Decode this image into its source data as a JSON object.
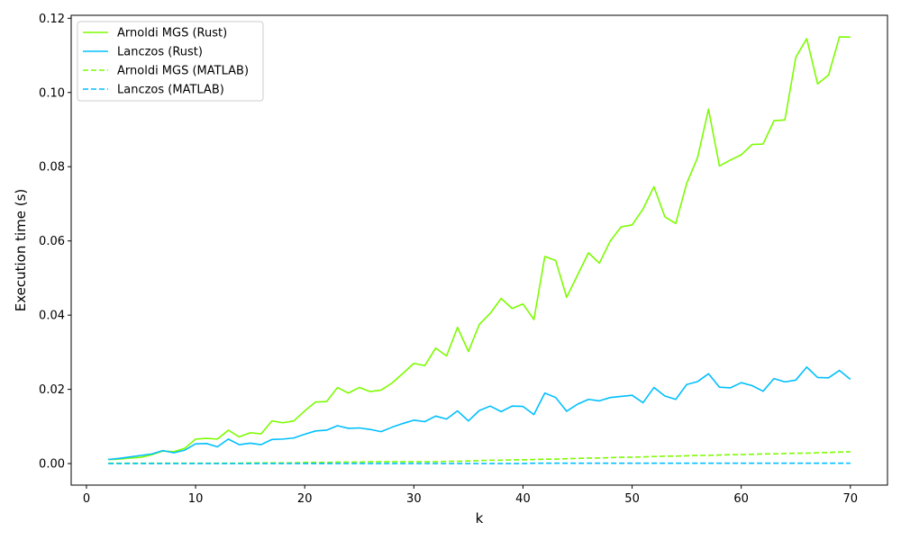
{
  "chart_data": {
    "type": "line",
    "xlabel": "k",
    "ylabel": "Execution time (s)",
    "xlim": [
      -1.4,
      73.4
    ],
    "ylim": [
      -0.0058,
      0.1208
    ],
    "xticks": [
      0,
      10,
      20,
      30,
      40,
      50,
      60,
      70
    ],
    "yticks": [
      0.0,
      0.02,
      0.04,
      0.06,
      0.08,
      0.1,
      0.12
    ],
    "ytick_labels": [
      "0.00",
      "0.02",
      "0.04",
      "0.06",
      "0.08",
      "0.10",
      "0.12"
    ],
    "grid": false,
    "legend_position": "upper-left",
    "x": [
      2,
      3,
      4,
      5,
      6,
      7,
      8,
      9,
      10,
      11,
      12,
      13,
      14,
      15,
      16,
      17,
      18,
      19,
      20,
      21,
      22,
      23,
      24,
      25,
      26,
      27,
      28,
      29,
      30,
      31,
      32,
      33,
      34,
      35,
      36,
      37,
      38,
      39,
      40,
      41,
      42,
      43,
      44,
      45,
      46,
      47,
      48,
      49,
      50,
      51,
      52,
      53,
      54,
      55,
      56,
      57,
      58,
      59,
      60,
      61,
      62,
      63,
      64,
      65,
      66,
      67,
      68,
      69,
      70
    ],
    "series": [
      {
        "name": "Arnoldi MGS (Rust)",
        "color": "#7cfc00",
        "style": "solid",
        "values": [
          0.0011,
          0.0012,
          0.0015,
          0.0017,
          0.0024,
          0.0034,
          0.0032,
          0.0041,
          0.0066,
          0.0068,
          0.0066,
          0.009,
          0.0072,
          0.0083,
          0.008,
          0.0115,
          0.011,
          0.0115,
          0.0142,
          0.0166,
          0.0167,
          0.0205,
          0.019,
          0.0205,
          0.0194,
          0.0198,
          0.0217,
          0.0243,
          0.027,
          0.0264,
          0.0311,
          0.029,
          0.0367,
          0.0302,
          0.0375,
          0.0405,
          0.0445,
          0.0418,
          0.043,
          0.0388,
          0.0558,
          0.0547,
          0.0448,
          0.0508,
          0.0568,
          0.054,
          0.06,
          0.0638,
          0.0643,
          0.0686,
          0.0746,
          0.0665,
          0.0647,
          0.0755,
          0.0825,
          0.0955,
          0.0802,
          0.0818,
          0.0832,
          0.086,
          0.0861,
          0.0924,
          0.0926,
          0.1095,
          0.1145,
          0.1023,
          0.1047,
          0.115,
          0.1149
        ]
      },
      {
        "name": "Lanczos (Rust)",
        "color": "#00bfff",
        "style": "solid",
        "values": [
          0.0011,
          0.0014,
          0.0018,
          0.0022,
          0.0026,
          0.0035,
          0.0029,
          0.0036,
          0.0053,
          0.0054,
          0.0045,
          0.0066,
          0.0051,
          0.0055,
          0.0051,
          0.0065,
          0.0066,
          0.0069,
          0.0079,
          0.0088,
          0.009,
          0.0102,
          0.0095,
          0.0096,
          0.0092,
          0.0086,
          0.0098,
          0.0108,
          0.0117,
          0.0113,
          0.0128,
          0.012,
          0.0142,
          0.0115,
          0.0143,
          0.0155,
          0.014,
          0.0155,
          0.0154,
          0.0132,
          0.019,
          0.0178,
          0.0141,
          0.016,
          0.0173,
          0.0169,
          0.0178,
          0.0181,
          0.0184,
          0.0164,
          0.0205,
          0.0182,
          0.0173,
          0.0213,
          0.0221,
          0.0242,
          0.0206,
          0.0204,
          0.0218,
          0.021,
          0.0195,
          0.0229,
          0.022,
          0.0225,
          0.026,
          0.0232,
          0.0231,
          0.0251,
          0.0227
        ]
      },
      {
        "name": "Arnoldi MGS (MATLAB)",
        "color": "#7cfc00",
        "style": "dashed",
        "values": [
          0.0001,
          0.0001,
          0.0001,
          0.0001,
          0.0001,
          0.0001,
          0.0001,
          0.0001,
          0.0001,
          0.0001,
          0.0001,
          0.0001,
          0.0001,
          0.0002,
          0.0002,
          0.0002,
          0.0002,
          0.0002,
          0.0003,
          0.0003,
          0.0003,
          0.0004,
          0.0004,
          0.0004,
          0.0005,
          0.0005,
          0.0005,
          0.0005,
          0.0005,
          0.0005,
          0.0005,
          0.0006,
          0.0006,
          0.0007,
          0.0008,
          0.0009,
          0.0009,
          0.001,
          0.001,
          0.0011,
          0.0012,
          0.0012,
          0.0013,
          0.0014,
          0.0015,
          0.0015,
          0.0016,
          0.0017,
          0.0017,
          0.0018,
          0.0019,
          0.002,
          0.002,
          0.0021,
          0.0022,
          0.0022,
          0.0023,
          0.0024,
          0.0024,
          0.0025,
          0.0026,
          0.0026,
          0.0027,
          0.0028,
          0.0028,
          0.0029,
          0.003,
          0.0031,
          0.0032
        ]
      },
      {
        "name": "Lanczos (MATLAB)",
        "color": "#00bfff",
        "style": "dashed",
        "values": [
          0.0,
          0.0,
          0.0,
          0.0,
          0.0,
          0.0,
          0.0,
          0.0,
          0.0,
          0.0,
          0.0,
          0.0,
          0.0,
          0.0,
          0.0,
          0.0,
          0.0,
          0.0,
          0.0,
          0.0,
          0.0,
          0.0,
          0.0,
          0.0,
          0.0,
          0.0,
          0.0,
          0.0,
          0.0,
          0.0,
          0.0,
          0.0,
          0.0,
          0.0,
          0.0,
          0.0,
          0.0,
          0.0,
          0.0,
          0.0001,
          0.0001,
          0.0001,
          0.0001,
          0.0001,
          0.0001,
          0.0001,
          0.0001,
          0.0001,
          0.0001,
          0.0001,
          0.0001,
          0.0001,
          0.0001,
          0.0001,
          0.0001,
          0.0001,
          0.0001,
          0.0001,
          0.0001,
          0.0001,
          0.0001,
          0.0001,
          0.0001,
          0.0001,
          0.0001,
          0.0001,
          0.0001,
          0.0001,
          0.0001
        ]
      }
    ]
  }
}
